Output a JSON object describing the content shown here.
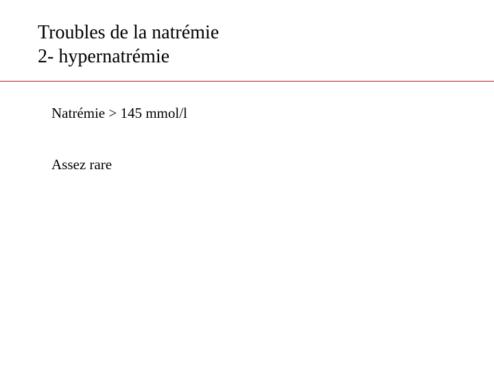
{
  "slide": {
    "title_line1": "Troubles de la natrémie",
    "title_line2": "2- hypernatrémie",
    "content_line1": "Natrémie > 145 mmol/l",
    "content_line2": "Assez rare"
  },
  "styles": {
    "background_color": "#ffffff",
    "title_color": "#000000",
    "title_fontsize": 28,
    "content_color": "#000000",
    "content_fontsize": 21,
    "divider_color": "#b22222",
    "font_family": "Times New Roman"
  }
}
